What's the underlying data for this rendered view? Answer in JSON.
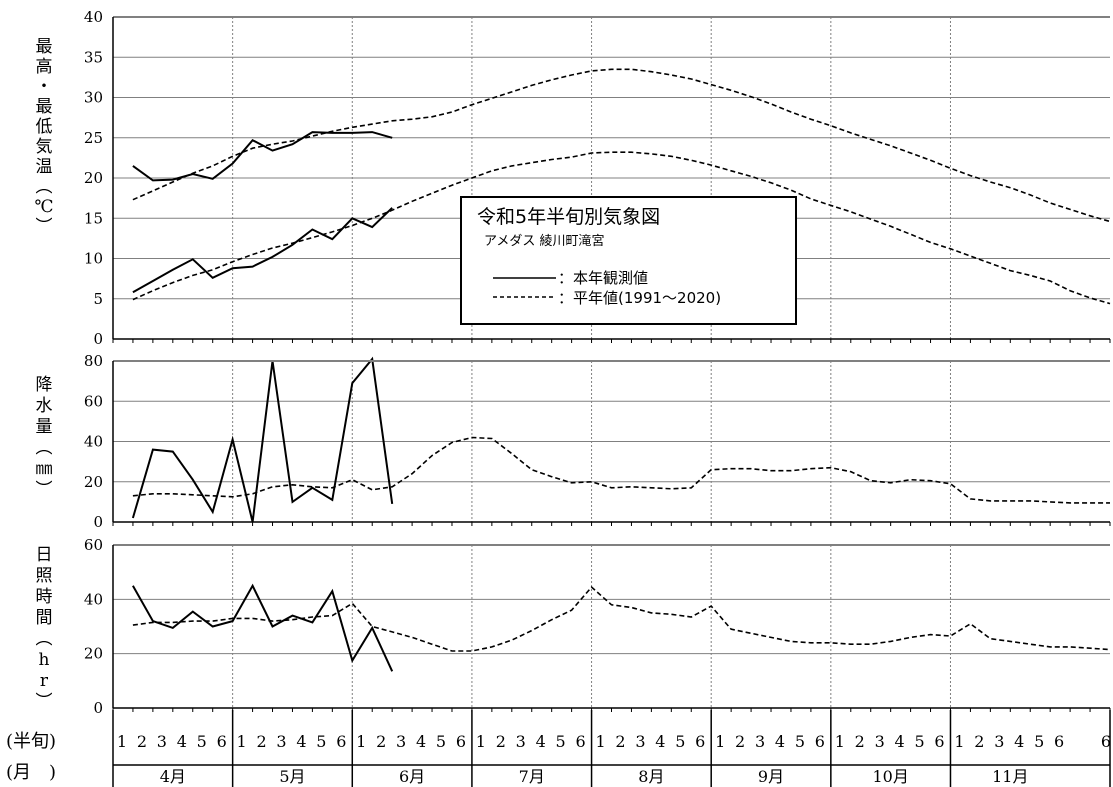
{
  "chart_data": [
    {
      "type": "line",
      "title": "令和5年半旬別気象図",
      "subtitle": "アメダス 綾川町滝宮",
      "ylabel": "最高・最低気温(℃)",
      "ylim": [
        0,
        40
      ],
      "yticks": [
        0,
        5,
        10,
        15,
        20,
        25,
        30,
        35,
        40
      ],
      "x_unit": "半旬",
      "legend": {
        "placement": "center",
        "entries": [
          {
            "label": "：本年観測値",
            "style": "solid"
          },
          {
            "label": "：平年値(1991～2020)",
            "style": "dashed"
          }
        ]
      },
      "series": [
        {
          "style": "solid",
          "values": [
            21.5,
            19.7,
            19.8,
            20.5,
            19.9,
            21.8,
            24.7,
            23.4,
            24.2,
            25.7,
            25.6,
            25.6,
            25.7,
            25.0
          ]
        },
        {
          "style": "solid",
          "values": [
            5.8,
            7.2,
            8.6,
            9.9,
            7.6,
            8.8,
            9.0,
            10.2,
            11.7,
            13.6,
            12.4,
            15.0,
            13.9,
            16.3
          ]
        },
        {
          "style": "dashed",
          "values": [
            17.3,
            18.4,
            19.5,
            20.6,
            21.5,
            22.7,
            23.7,
            24.2,
            24.6,
            25.2,
            25.8,
            26.3,
            26.7,
            27.1,
            27.3,
            27.6,
            28.2,
            29.1,
            29.9,
            30.7,
            31.5,
            32.2,
            32.8,
            33.3,
            33.5,
            33.5,
            33.2,
            32.8,
            32.3,
            31.6,
            30.9,
            30.1,
            29.2,
            28.2,
            27.3,
            26.5,
            25.6,
            24.8,
            24.0,
            23.1,
            22.2,
            21.2,
            20.3,
            19.5,
            18.8,
            17.9,
            16.9,
            16.1,
            15.3,
            14.6
          ]
        },
        {
          "style": "dashed",
          "values": [
            4.9,
            6.0,
            7.0,
            7.9,
            8.6,
            9.6,
            10.5,
            11.3,
            11.9,
            12.6,
            13.3,
            14.1,
            15.0,
            16.0,
            17.1,
            18.1,
            19.1,
            20.0,
            20.9,
            21.5,
            21.9,
            22.3,
            22.6,
            23.1,
            23.2,
            23.2,
            23.0,
            22.7,
            22.2,
            21.6,
            20.9,
            20.2,
            19.4,
            18.5,
            17.4,
            16.6,
            15.8,
            14.9,
            14.0,
            13.0,
            12.0,
            11.2,
            10.3,
            9.4,
            8.5,
            7.9,
            7.2,
            6.0,
            5.1,
            4.4
          ]
        }
      ]
    },
    {
      "type": "line",
      "ylabel": "降水量(㎜)",
      "ylim": [
        0,
        80
      ],
      "yticks": [
        0,
        20,
        40,
        60,
        80
      ],
      "series": [
        {
          "style": "solid",
          "values": [
            2,
            36,
            35,
            21,
            5,
            41,
            0,
            80,
            10,
            17,
            11,
            69,
            82,
            9
          ]
        },
        {
          "style": "dashed",
          "values": [
            13,
            14,
            14,
            13.5,
            13,
            12.5,
            14,
            17.5,
            18.5,
            17.5,
            17,
            21,
            16,
            17.5,
            24,
            33,
            39.5,
            42,
            41.5,
            34,
            26,
            22.5,
            19.5,
            20,
            17,
            17.5,
            17,
            16.5,
            17,
            26,
            26.5,
            26.5,
            25.5,
            25.5,
            26.5,
            27,
            25,
            20.5,
            19.5,
            21,
            20.5,
            19,
            11.5,
            10.5,
            10.5,
            10.5,
            10,
            9.5,
            9.5,
            9.5
          ]
        }
      ]
    },
    {
      "type": "line",
      "ylabel": "日照時間(hr)",
      "ylim": [
        0,
        60
      ],
      "yticks": [
        0,
        20,
        40,
        60
      ],
      "series": [
        {
          "style": "solid",
          "values": [
            45,
            32,
            29.5,
            35.5,
            30,
            32,
            45,
            30,
            34,
            31.5,
            43,
            17.5,
            29.5,
            13.5
          ]
        },
        {
          "style": "dashed",
          "values": [
            30.5,
            31.5,
            31.5,
            32,
            32,
            33,
            33,
            32,
            32.5,
            33.5,
            34,
            38.5,
            30,
            28,
            26,
            23.5,
            21,
            21,
            22.5,
            25,
            28.5,
            32.5,
            36,
            44.5,
            38,
            37,
            35,
            34.5,
            33.5,
            37.5,
            29,
            27.5,
            26,
            24.5,
            24,
            24,
            23.5,
            23.5,
            24.5,
            26,
            27,
            26.5,
            31,
            25.5,
            24.5,
            23.5,
            22.5,
            22.5,
            22,
            21.5
          ]
        }
      ]
    }
  ],
  "x_axis": {
    "pentad_row_label": "(半旬)",
    "month_row_label": "(月　)",
    "pentads": [
      "1",
      "2",
      "3",
      "4",
      "5",
      "6"
    ],
    "months": [
      "4月",
      "5月",
      "6月",
      "7月",
      "8月",
      "9月",
      "10月",
      "11月"
    ]
  },
  "colors": {
    "line": "#000000",
    "grid": "#808080",
    "frame": "#000000"
  }
}
